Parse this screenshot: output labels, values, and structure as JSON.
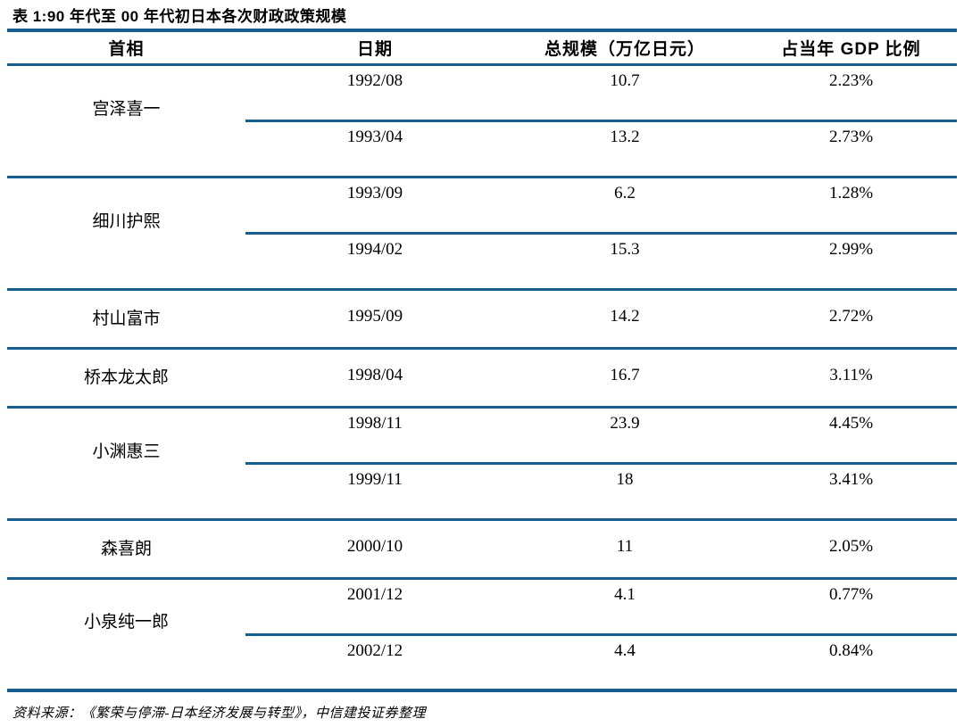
{
  "title": "表 1:90 年代至 00 年代初日本各次财政政策规模",
  "colors": {
    "table_line": "#175d8d",
    "text": "#000000",
    "background": "#ffffff"
  },
  "table": {
    "columns": [
      "首相",
      "日期",
      "总规模（万亿日元）",
      "占当年 GDP 比例"
    ],
    "groups": [
      {
        "pm": "宫泽喜一",
        "rows": [
          {
            "date": "1992/08",
            "scale": "10.7",
            "gdp_ratio": "2.23%"
          },
          {
            "date": "1993/04",
            "scale": "13.2",
            "gdp_ratio": "2.73%"
          }
        ]
      },
      {
        "pm": "细川护熙",
        "rows": [
          {
            "date": "1993/09",
            "scale": "6.2",
            "gdp_ratio": "1.28%"
          },
          {
            "date": "1994/02",
            "scale": "15.3",
            "gdp_ratio": "2.99%"
          }
        ]
      },
      {
        "pm": "村山富市",
        "rows": [
          {
            "date": "1995/09",
            "scale": "14.2",
            "gdp_ratio": "2.72%"
          }
        ]
      },
      {
        "pm": "桥本龙太郎",
        "rows": [
          {
            "date": "1998/04",
            "scale": "16.7",
            "gdp_ratio": "3.11%"
          }
        ]
      },
      {
        "pm": "小渊惠三",
        "rows": [
          {
            "date": "1998/11",
            "scale": "23.9",
            "gdp_ratio": "4.45%"
          },
          {
            "date": "1999/11",
            "scale": "18",
            "gdp_ratio": "3.41%"
          }
        ]
      },
      {
        "pm": "森喜朗",
        "rows": [
          {
            "date": "2000/10",
            "scale": "11",
            "gdp_ratio": "2.05%"
          }
        ]
      },
      {
        "pm": "小泉纯一郎",
        "rows": [
          {
            "date": "2001/12",
            "scale": "4.1",
            "gdp_ratio": "0.77%"
          },
          {
            "date": "2002/12",
            "scale": "4.4",
            "gdp_ratio": "0.84%"
          }
        ]
      }
    ]
  },
  "source": "资料来源：《繁荣与停滞-日本经济发展与转型》，中信建投证券整理"
}
